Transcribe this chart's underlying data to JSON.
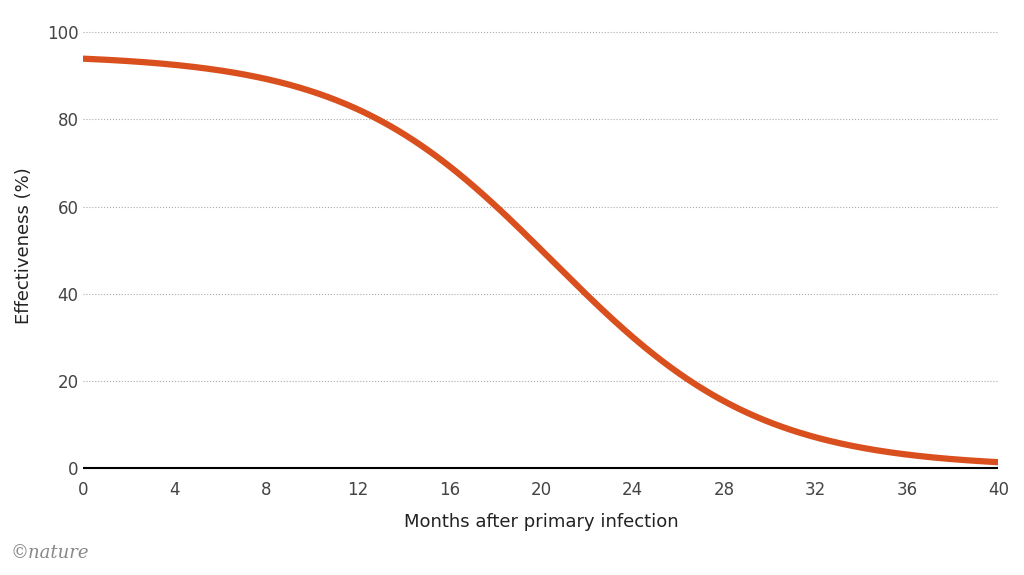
{
  "title": "",
  "xlabel": "Months after primary infection",
  "ylabel": "Effectiveness (%)",
  "line_color": "#D94F1E",
  "line_width": 4.5,
  "background_color": "#ffffff",
  "xlim": [
    0,
    40
  ],
  "ylim": [
    -2,
    104
  ],
  "xticks": [
    0,
    4,
    8,
    12,
    16,
    20,
    24,
    28,
    32,
    36,
    40
  ],
  "yticks": [
    0,
    20,
    40,
    60,
    80,
    100
  ],
  "grid_color": "#aaaaaa",
  "grid_linestyle": ":",
  "grid_linewidth": 0.8,
  "watermark": "©nature",
  "watermark_color": "#888888",
  "axis_color": "#222222",
  "tick_color": "#444444",
  "sigmoid_L": 95,
  "sigmoid_k": 0.22,
  "sigmoid_x0": 20.5
}
